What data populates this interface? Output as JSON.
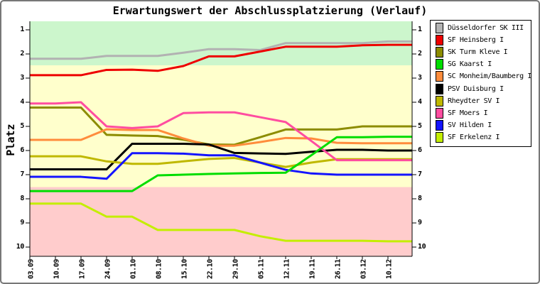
{
  "figure": {
    "title": "Erwartungswert der Abschlussplatzierung (Verlauf)",
    "y_axis_label": "Platz"
  },
  "chart_data": {
    "type": "line",
    "title": "Erwartungswert der Abschlussplatzierung (Verlauf)",
    "xlabel": "",
    "ylabel": "Platz",
    "y_axis_inverted": true,
    "ylim": [
      0.65,
      10.4
    ],
    "y_ticks": [
      1,
      2,
      3,
      4,
      5,
      6,
      7,
      8,
      9,
      10
    ],
    "grid": false,
    "legend_position": "right",
    "x_labels": [
      "03.09",
      "10.09",
      "17.09",
      "24.09",
      "01.10",
      "08.10",
      "15.10",
      "22.10",
      "29.10",
      "05.11",
      "12.11",
      "19.11",
      "26.11",
      "03.12",
      "10.12"
    ],
    "zones": [
      {
        "name": "top",
        "from": 0.65,
        "to": 2.47,
        "color": "#ccf6cc"
      },
      {
        "name": "middle",
        "from": 2.47,
        "to": 7.52,
        "color": "#ffffcc"
      },
      {
        "name": "bottom",
        "from": 7.52,
        "to": 10.4,
        "color": "#ffcccc"
      }
    ],
    "series": [
      {
        "name": "Düsseldorfer SK III",
        "color": "#b2b2b2",
        "values": [
          2.2,
          2.2,
          2.2,
          2.08,
          2.08,
          2.08,
          1.95,
          1.8,
          1.8,
          1.84,
          1.55,
          1.55,
          1.55,
          1.55,
          1.48
        ]
      },
      {
        "name": "SF Heinsberg I",
        "color": "#ee0000",
        "values": [
          2.88,
          2.88,
          2.88,
          2.66,
          2.65,
          2.7,
          2.5,
          2.1,
          2.1,
          1.9,
          1.7,
          1.7,
          1.7,
          1.64,
          1.62
        ]
      },
      {
        "name": "SK Turm Kleve I",
        "color": "#8c8c00",
        "values": [
          4.22,
          4.22,
          4.22,
          5.35,
          5.38,
          5.4,
          5.55,
          5.75,
          5.76,
          5.45,
          5.13,
          5.13,
          5.13,
          5.0,
          5.0
        ]
      },
      {
        "name": "SG Kaarst I",
        "color": "#00dd00",
        "values": [
          7.68,
          7.68,
          7.68,
          7.68,
          7.68,
          7.03,
          7.0,
          6.97,
          6.95,
          6.93,
          6.92,
          6.2,
          5.45,
          5.45,
          5.43
        ]
      },
      {
        "name": "SC Monheim/Baumberg I",
        "color": "#ff8c3c",
        "values": [
          5.56,
          5.56,
          5.56,
          5.12,
          5.15,
          5.15,
          5.5,
          5.8,
          5.8,
          5.65,
          5.48,
          5.5,
          5.68,
          5.7,
          5.7
        ]
      },
      {
        "name": "PSV Duisburg I",
        "color": "#000000",
        "values": [
          6.78,
          6.78,
          6.78,
          6.78,
          5.72,
          5.72,
          5.72,
          5.75,
          6.1,
          6.12,
          6.14,
          6.05,
          5.97,
          5.97,
          6.0
        ]
      },
      {
        "name": "Rheydter SV I",
        "color": "#bfb800",
        "values": [
          6.24,
          6.24,
          6.24,
          6.45,
          6.55,
          6.55,
          6.45,
          6.35,
          6.31,
          6.5,
          6.68,
          6.5,
          6.36,
          6.36,
          6.36
        ]
      },
      {
        "name": "SF Moers I",
        "color": "#ff4da0",
        "values": [
          4.05,
          4.05,
          4.0,
          5.0,
          5.07,
          5.0,
          4.45,
          4.42,
          4.42,
          4.62,
          4.82,
          5.6,
          6.4,
          6.4,
          6.4
        ]
      },
      {
        "name": "SV Hilden I",
        "color": "#1414ff",
        "values": [
          7.09,
          7.09,
          7.09,
          7.17,
          6.11,
          6.11,
          6.13,
          6.2,
          6.2,
          6.5,
          6.8,
          6.95,
          7.0,
          7.0,
          7.0
        ]
      },
      {
        "name": "SF Erkelenz I",
        "color": "#c4ee00",
        "values": [
          8.2,
          8.2,
          8.2,
          8.74,
          8.74,
          9.29,
          9.29,
          9.29,
          9.29,
          9.55,
          9.74,
          9.74,
          9.74,
          9.74,
          9.76
        ]
      }
    ],
    "draw_order": [
      0,
      1,
      2,
      4,
      5,
      6,
      8,
      9,
      7,
      3
    ]
  }
}
